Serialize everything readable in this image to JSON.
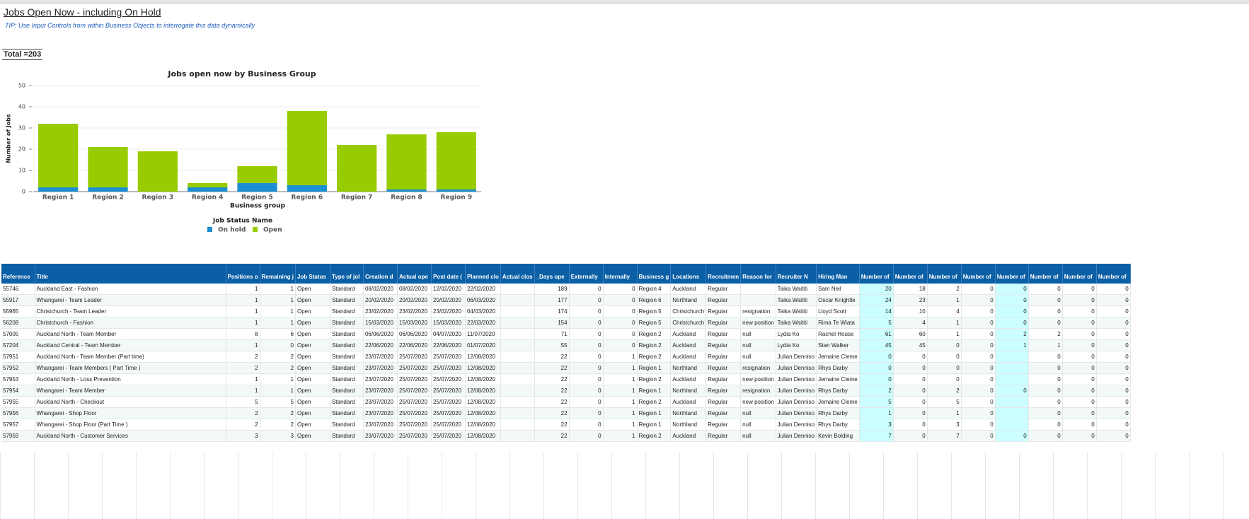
{
  "header": {
    "title": "Jobs Open Now - including On Hold",
    "tip": "TIP: Use Input Controls from within Business Objects to interrogate this data dynamically",
    "total": "Total =203"
  },
  "chart": {
    "type": "bar",
    "stacked": true,
    "title": "Jobs open now by Business Group",
    "x_label": "Business group",
    "y_label": "Number of Jobs",
    "legend_title": "Job Status Name",
    "categories": [
      "Region 1",
      "Region 2",
      "Region 3",
      "Region 4",
      "Region 5",
      "Region 6",
      "Region 7",
      "Region 8",
      "Region 9"
    ],
    "series": [
      {
        "name": "On hold",
        "color": "#1b8fd2",
        "values": [
          2,
          2,
          0,
          2,
          4,
          3,
          0,
          1,
          1
        ]
      },
      {
        "name": "Open",
        "color": "#99cc00",
        "values": [
          30,
          19,
          19,
          2,
          8,
          35,
          22,
          26,
          27
        ]
      }
    ],
    "ylim": [
      0,
      50
    ],
    "yticks": [
      0,
      10,
      20,
      30,
      40,
      50
    ],
    "grid": true
  },
  "table": {
    "columns": [
      "Reference",
      "Title",
      "Positions o",
      "Remaining j",
      "Job Status",
      "Type of jol",
      "Creation d",
      "Actual ope",
      "Post date (",
      "Planned clo",
      "Actual clos",
      "_Days ope",
      "Externally",
      "Internally",
      "Business g",
      "Locations",
      "Recruitmen",
      "Reason for",
      "Recruiter N",
      "Hiring Man",
      "Number of",
      "Number of",
      "Number of",
      "Number of",
      "Number of",
      "Number of",
      "Number of",
      "Number of"
    ],
    "rows": [
      [
        "55746",
        "Auckland East - Fashion",
        1,
        1,
        "Open",
        "Standard",
        "08/02/2020",
        "08/02/2020",
        "12/02/2020",
        "22/02/2020",
        null,
        189,
        0,
        0,
        "Region 4",
        "Auckland",
        "Regular",
        null,
        "Taika Waititi",
        "Sam Neil",
        20,
        18,
        2,
        0,
        0,
        0,
        0,
        0
      ],
      [
        "55917",
        "Whangarei - Team Leader",
        1,
        1,
        "Open",
        "Standard",
        "20/02/2020",
        "20/02/2020",
        "20/02/2020",
        "06/03/2020",
        null,
        177,
        0,
        0,
        "Region 6",
        "Northland",
        "Regular",
        null,
        "Taika Waititi",
        "Oscar Knightle",
        24,
        23,
        1,
        0,
        0,
        0,
        0,
        0
      ],
      [
        "55965",
        "Christchurch - Team Leader",
        1,
        1,
        "Open",
        "Standard",
        "23/02/2020",
        "23/02/2020",
        "23/02/2020",
        "04/03/2020",
        null,
        174,
        0,
        0,
        "Region 5",
        "Christchurch",
        "Regular",
        "resignation",
        "Taika Waititi",
        "Lloyd Scott",
        14,
        10,
        4,
        0,
        0,
        0,
        0,
        0
      ],
      [
        "56208",
        "Christchurch - Fashion",
        1,
        1,
        "Open",
        "Standard",
        "15/03/2020",
        "15/03/2020",
        "15/03/2020",
        "22/03/2020",
        null,
        154,
        0,
        0,
        "Region 5",
        "Christchurch",
        "Regular",
        "new position",
        "Taika Waititi",
        "Rima Te Wiata",
        5,
        4,
        1,
        0,
        0,
        0,
        0,
        0
      ],
      [
        "57005",
        "Auckland North - Team Member",
        8,
        6,
        "Open",
        "Standard",
        "06/06/2020",
        "06/06/2020",
        "04/07/2020",
        "11/07/2020",
        null,
        71,
        0,
        0,
        "Region 2",
        "Auckland",
        "Regular",
        "null",
        "Lydia Ko",
        "Rachel House",
        61,
        60,
        1,
        0,
        2,
        2,
        0,
        0
      ],
      [
        "57204",
        "Auckland Central - Team Member",
        1,
        0,
        "Open",
        "Standard",
        "22/06/2020",
        "22/06/2020",
        "22/06/2020",
        "01/07/2020",
        null,
        55,
        0,
        0,
        "Region 2",
        "Auckland",
        "Regular",
        "null",
        "Lydia Ko",
        "Stan Walker",
        45,
        45,
        0,
        0,
        1,
        1,
        0,
        0
      ],
      [
        "57951",
        "Auckland North - Team Member (Part time)",
        2,
        2,
        "Open",
        "Standard",
        "23/07/2020",
        "25/07/2020",
        "25/07/2020",
        "12/08/2020",
        null,
        22,
        0,
        1,
        "Region 2",
        "Auckland",
        "Regular",
        "null",
        "Julian Denniso",
        "Jemaine Cleme",
        0,
        0,
        0,
        0,
        null,
        0,
        0,
        0
      ],
      [
        "57952",
        "Whangarei -  Team Members ( Part Time )",
        2,
        2,
        "Open",
        "Standard",
        "23/07/2020",
        "25/07/2020",
        "25/07/2020",
        "12/08/2020",
        null,
        22,
        0,
        1,
        "Region 1",
        "Northland",
        "Regular",
        "resignation",
        "Julian Denniso",
        "Rhys Darby",
        0,
        0,
        0,
        0,
        null,
        0,
        0,
        0
      ],
      [
        "57953",
        "Auckland North - Loss Prevention",
        1,
        1,
        "Open",
        "Standard",
        "23/07/2020",
        "25/07/2020",
        "25/07/2020",
        "12/08/2020",
        null,
        22,
        0,
        1,
        "Region 2",
        "Auckland",
        "Regular",
        "new position",
        "Julian Denniso",
        "Jemaine Cleme",
        0,
        0,
        0,
        0,
        null,
        0,
        0,
        0
      ],
      [
        "57954",
        "Whangarei - Team Member",
        1,
        1,
        "Open",
        "Standard",
        "23/07/2020",
        "25/07/2020",
        "25/07/2020",
        "12/08/2020",
        null,
        22,
        0,
        1,
        "Region 1",
        "Northland",
        "Regular",
        "resignation",
        "Julian Denniso",
        "Rhys Darby",
        2,
        0,
        2,
        0,
        0,
        0,
        0,
        0
      ],
      [
        "57955",
        "Auckland North - Checkout",
        5,
        5,
        "Open",
        "Standard",
        "23/07/2020",
        "25/07/2020",
        "25/07/2020",
        "12/08/2020",
        null,
        22,
        0,
        1,
        "Region 2",
        "Auckland",
        "Regular",
        "new position",
        "Julian Denniso",
        "Jemaine Cleme",
        5,
        0,
        5,
        0,
        null,
        0,
        0,
        0
      ],
      [
        "57956",
        "Whangarei -  Shop Floor",
        2,
        2,
        "Open",
        "Standard",
        "23/07/2020",
        "25/07/2020",
        "25/07/2020",
        "12/08/2020",
        null,
        22,
        0,
        1,
        "Region 1",
        "Northland",
        "Regular",
        "null",
        "Julian Denniso",
        "Rhys Darby",
        1,
        0,
        1,
        0,
        null,
        0,
        0,
        0
      ],
      [
        "57957",
        "Whangarei - Shop Floor (Part Time )",
        2,
        2,
        "Open",
        "Standard",
        "23/07/2020",
        "25/07/2020",
        "25/07/2020",
        "12/08/2020",
        null,
        22,
        0,
        1,
        "Region 1",
        "Northland",
        "Regular",
        "null",
        "Julian Denniso",
        "Rhys Darby",
        3,
        0,
        3,
        0,
        null,
        0,
        0,
        0
      ],
      [
        "57959",
        "Auckland North - Customer Services",
        3,
        3,
        "Open",
        "Standard",
        "23/07/2020",
        "25/07/2020",
        "25/07/2020",
        "12/08/2020",
        null,
        22,
        0,
        1,
        "Region 2",
        "Auckland",
        "Regular",
        "null",
        "Julian Denniso",
        "Kevin Bolding",
        7,
        0,
        7,
        0,
        0,
        0,
        0,
        0
      ]
    ]
  }
}
